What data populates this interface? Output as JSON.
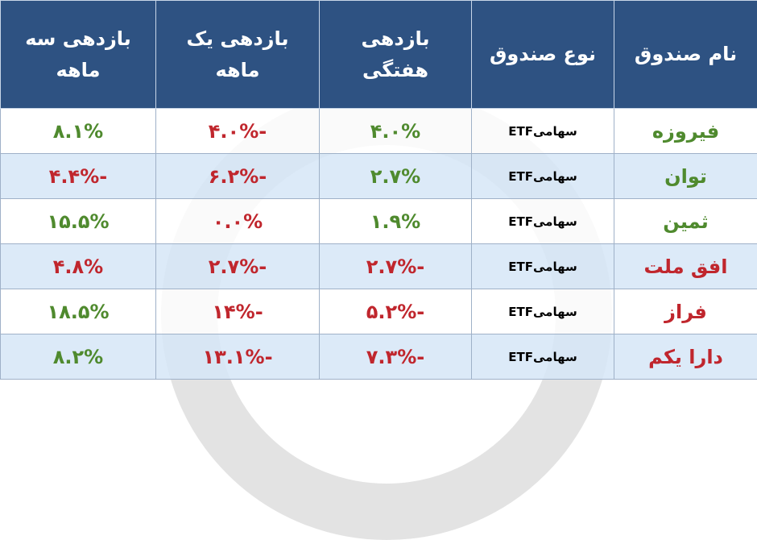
{
  "table": {
    "header": [
      "نام صندوق",
      "نوع صندوق",
      "بازدهی هفتگی",
      "بازدهی یک ماهه",
      "بازدهی سه ماهه"
    ],
    "rows": [
      {
        "cells": [
          "فیروزه",
          "سهامیETF",
          "۴.۰%",
          "-۴.۰%",
          "۸.۱%"
        ],
        "colors": [
          "#4f8a2e",
          "#000000",
          "#4f8a2e",
          "#c0262d",
          "#4f8a2e"
        ]
      },
      {
        "cells": [
          "توان",
          "سهامیETF",
          "۲.۷%",
          "-۶.۲%",
          "-۴.۴%"
        ],
        "colors": [
          "#4f8a2e",
          "#000000",
          "#4f8a2e",
          "#c0262d",
          "#c0262d"
        ]
      },
      {
        "cells": [
          "ثمین",
          "سهامیETF",
          "۱.۹%",
          "۰.۰%",
          "۱۵.۵%"
        ],
        "colors": [
          "#4f8a2e",
          "#000000",
          "#4f8a2e",
          "#c0262d",
          "#4f8a2e"
        ]
      },
      {
        "cells": [
          "افق ملت",
          "سهامیETF",
          "-۲.۷%",
          "-۲.۷%",
          "۴.۸%"
        ],
        "colors": [
          "#c0262d",
          "#000000",
          "#c0262d",
          "#c0262d",
          "#c0262d"
        ]
      },
      {
        "cells": [
          "فراز",
          "سهامیETF",
          "-۵.۲%",
          "-۱۴%",
          "۱۸.۵%"
        ],
        "colors": [
          "#c0262d",
          "#000000",
          "#c0262d",
          "#c0262d",
          "#4f8a2e"
        ]
      },
      {
        "cells": [
          "دارا یکم",
          "سهامیETF",
          "-۷.۳%",
          "-۱۳.۱%",
          "۸.۲%"
        ],
        "colors": [
          "#c0262d",
          "#000000",
          "#c0262d",
          "#c0262d",
          "#4f8a2e"
        ]
      }
    ]
  }
}
